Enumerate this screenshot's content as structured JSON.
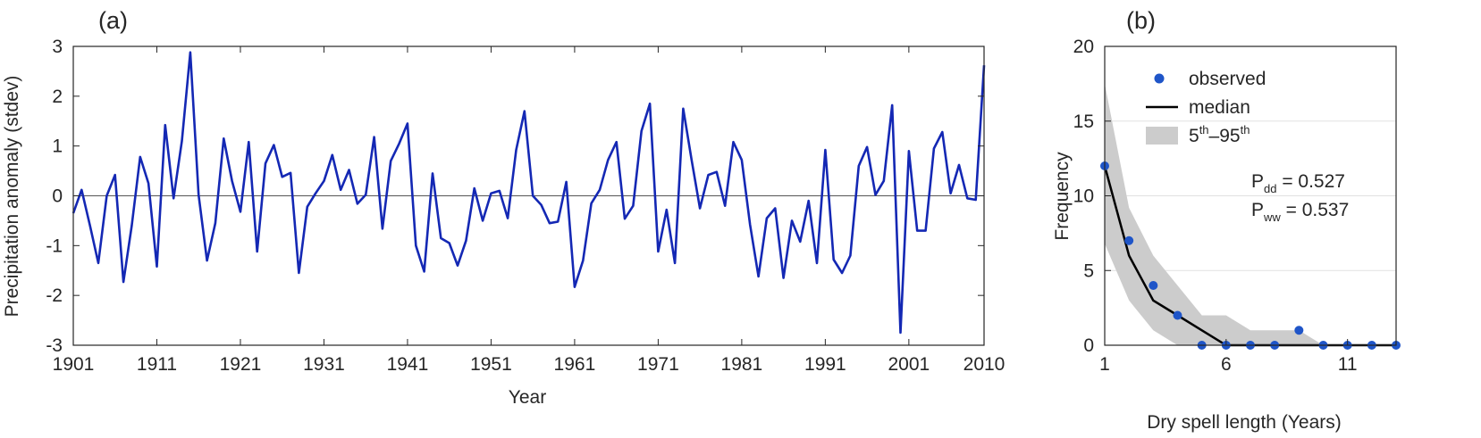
{
  "chart_data": [
    {
      "panel_label": "(a)",
      "type": "line",
      "title": "",
      "xlabel": "Year",
      "ylabel": "Precipitation anomaly (stdev)",
      "xlim": [
        1901,
        2010
      ],
      "ylim": [
        -3,
        3
      ],
      "xticks": [
        "1901",
        "1911",
        "1921",
        "1931",
        "1941",
        "1951",
        "1961",
        "1971",
        "1981",
        "1991",
        "2001",
        "2010"
      ],
      "yticks": [
        "-3",
        "-2",
        "-1",
        "0",
        "1",
        "2",
        "3"
      ],
      "grid": false,
      "zero_line": true,
      "series_color": "#1428b4",
      "x": [
        1901,
        1902,
        1903,
        1904,
        1905,
        1906,
        1907,
        1908,
        1909,
        1910,
        1911,
        1912,
        1913,
        1914,
        1915,
        1916,
        1917,
        1918,
        1919,
        1920,
        1921,
        1922,
        1923,
        1924,
        1925,
        1926,
        1927,
        1928,
        1929,
        1930,
        1931,
        1932,
        1933,
        1934,
        1935,
        1936,
        1937,
        1938,
        1939,
        1940,
        1941,
        1942,
        1943,
        1944,
        1945,
        1946,
        1947,
        1948,
        1949,
        1950,
        1951,
        1952,
        1953,
        1954,
        1955,
        1956,
        1957,
        1958,
        1959,
        1960,
        1961,
        1962,
        1963,
        1964,
        1965,
        1966,
        1967,
        1968,
        1969,
        1970,
        1971,
        1972,
        1973,
        1974,
        1975,
        1976,
        1977,
        1978,
        1979,
        1980,
        1981,
        1982,
        1983,
        1984,
        1985,
        1986,
        1987,
        1988,
        1989,
        1990,
        1991,
        1992,
        1993,
        1994,
        1995,
        1996,
        1997,
        1998,
        1999,
        2000,
        2001,
        2002,
        2003,
        2004,
        2005,
        2006,
        2007,
        2008,
        2009,
        2010
      ],
      "y": [
        -0.35,
        0.12,
        -0.6,
        -1.35,
        0.0,
        0.42,
        -1.73,
        -0.6,
        0.78,
        0.25,
        -1.42,
        1.42,
        -0.05,
        1.1,
        2.88,
        0.02,
        -1.3,
        -0.55,
        1.15,
        0.3,
        -0.32,
        1.08,
        -1.12,
        0.65,
        1.02,
        0.38,
        0.46,
        -1.55,
        -0.22,
        0.05,
        0.3,
        0.82,
        0.12,
        0.52,
        -0.16,
        0.02,
        1.18,
        -0.66,
        0.7,
        1.05,
        1.45,
        -1.0,
        -1.52,
        0.45,
        -0.85,
        -0.95,
        -1.4,
        -0.9,
        0.15,
        -0.5,
        0.05,
        0.1,
        -0.45,
        0.92,
        1.7,
        0.0,
        -0.18,
        -0.55,
        -0.52,
        0.28,
        -1.83,
        -1.3,
        -0.15,
        0.12,
        0.72,
        1.08,
        -0.46,
        -0.2,
        1.3,
        1.85,
        -1.12,
        -0.28,
        -1.35,
        1.75,
        0.72,
        -0.25,
        0.42,
        0.48,
        -0.2,
        1.08,
        0.72,
        -0.58,
        -1.62,
        -0.45,
        -0.25,
        -1.65,
        -0.5,
        -0.92,
        -0.1,
        -1.35,
        0.92,
        -1.28,
        -1.55,
        -1.2,
        0.6,
        0.98,
        0.02,
        0.3,
        1.82,
        -2.75,
        0.9,
        -0.7,
        -0.7,
        0.95,
        1.28,
        0.05,
        0.62,
        -0.05,
        -0.08,
        2.62
      ]
    },
    {
      "panel_label": "(b)",
      "type": "scatter",
      "title": "",
      "xlabel": "Dry spell length (Years)",
      "ylabel": "Frequency",
      "xlim": [
        1,
        13
      ],
      "ylim": [
        0,
        20
      ],
      "xticks": [
        "1",
        "6",
        "11"
      ],
      "yticks": [
        "0",
        "5",
        "10",
        "15",
        "20"
      ],
      "grid": true,
      "legend_position": "top-right",
      "legend": {
        "observed": "observed",
        "median": "median",
        "band_sup1": "th",
        "band_dash": "–",
        "band_sup2": "th",
        "band_low_num": "5",
        "band_high_num": "95"
      },
      "annotations": {
        "p_dd_main": "P",
        "p_dd_sub": "dd",
        "p_dd_value": " = 0.527",
        "p_ww_main": "P",
        "p_ww_sub": "ww",
        "p_ww_value": " = 0.537"
      },
      "colors": {
        "observed": "#1f55c8",
        "median": "#000000",
        "band": "#cccccc"
      },
      "observed": {
        "x": [
          1,
          2,
          3,
          4,
          5,
          6,
          7,
          8,
          9,
          10,
          11,
          12,
          13
        ],
        "y": [
          12,
          7,
          4,
          2,
          0,
          0,
          0,
          0,
          1,
          0,
          0,
          0,
          0
        ]
      },
      "median": {
        "x": [
          1,
          2,
          3,
          4,
          5,
          6,
          7,
          8,
          9,
          10,
          11,
          12,
          13
        ],
        "y": [
          12,
          6,
          3,
          2,
          1,
          0,
          0,
          0,
          0,
          0,
          0,
          0,
          0
        ]
      },
      "band": {
        "x": [
          1,
          2,
          3,
          4,
          5,
          6,
          7,
          8,
          9,
          10,
          11,
          12,
          13
        ],
        "low": [
          6.8,
          3,
          1,
          0,
          0,
          0,
          0,
          0,
          0,
          0,
          0,
          0,
          0
        ],
        "high": [
          17.5,
          9.2,
          6,
          4,
          2,
          2,
          1,
          1,
          1,
          0,
          0,
          0,
          0
        ]
      }
    }
  ]
}
